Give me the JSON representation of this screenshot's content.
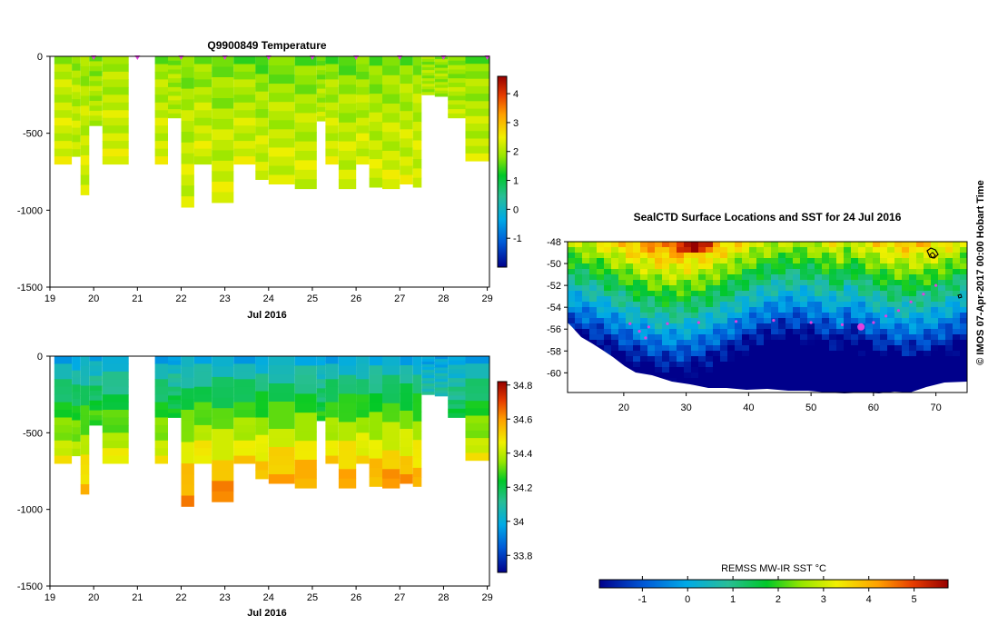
{
  "figure": {
    "credit": "© IMOS 07-Apr-2017 00:00 Hobart Time",
    "colors": {
      "missing": "#ffffff",
      "marker": "#e040e0",
      "axis": "#000000"
    }
  },
  "chart_data": [
    {
      "type": "heatmap",
      "id": "temperature-section",
      "title": "Q9900849  Temperature",
      "xlabel": "Jul 2016",
      "ylabel": "",
      "x_ticks": [
        "19",
        "20",
        "21",
        "22",
        "23",
        "24",
        "25",
        "26",
        "27",
        "28",
        "29"
      ],
      "x_range": [
        19,
        29.05
      ],
      "y_ticks": [
        "0",
        "-500",
        "-1000",
        "-1500"
      ],
      "y_tick_values": [
        0,
        -500,
        -1000,
        -1500
      ],
      "y_range": [
        -1500,
        0
      ],
      "profile_markers": [
        20,
        21,
        22,
        23,
        24,
        25,
        26,
        27,
        28,
        29
      ],
      "colorbar": {
        "ticks": [
          "4",
          "3",
          "2",
          "1",
          "0",
          "-1"
        ],
        "tick_values": [
          4,
          3,
          2,
          1,
          0,
          -1
        ],
        "range": [
          -2,
          4.6
        ]
      },
      "profiles": [
        {
          "start": 19.1,
          "end": 19.5,
          "max_depth": 700,
          "surface": 1.8,
          "deep": 2.3
        },
        {
          "start": 19.5,
          "end": 19.7,
          "max_depth": 650,
          "surface": 1.7,
          "deep": 2.2
        },
        {
          "start": 19.7,
          "end": 19.9,
          "max_depth": 900,
          "surface": 1.6,
          "deep": 2.3
        },
        {
          "start": 19.9,
          "end": 20.2,
          "max_depth": 450,
          "surface": 1.5,
          "deep": 2.1
        },
        {
          "start": 20.2,
          "end": 20.8,
          "max_depth": 700,
          "surface": 1.6,
          "deep": 2.3
        },
        {
          "start": 21.4,
          "end": 21.7,
          "max_depth": 700,
          "surface": 1.5,
          "deep": 2.3
        },
        {
          "start": 21.7,
          "end": 22.0,
          "max_depth": 400,
          "surface": 1.6,
          "deep": 2.1
        },
        {
          "start": 22.0,
          "end": 22.3,
          "max_depth": 980,
          "surface": 1.3,
          "deep": 2.3
        },
        {
          "start": 22.3,
          "end": 22.7,
          "max_depth": 700,
          "surface": 1.4,
          "deep": 2.3
        },
        {
          "start": 22.7,
          "end": 23.2,
          "max_depth": 950,
          "surface": 1.2,
          "deep": 2.3
        },
        {
          "start": 23.2,
          "end": 23.7,
          "max_depth": 700,
          "surface": 1.3,
          "deep": 2.3
        },
        {
          "start": 23.7,
          "end": 24.0,
          "max_depth": 800,
          "surface": 1.1,
          "deep": 2.3
        },
        {
          "start": 24.0,
          "end": 24.6,
          "max_depth": 830,
          "surface": 1.2,
          "deep": 2.3
        },
        {
          "start": 24.6,
          "end": 25.1,
          "max_depth": 860,
          "surface": 1.2,
          "deep": 2.3
        },
        {
          "start": 25.1,
          "end": 25.3,
          "max_depth": 420,
          "surface": 1.3,
          "deep": 2.1
        },
        {
          "start": 25.3,
          "end": 25.6,
          "max_depth": 700,
          "surface": 1.3,
          "deep": 2.3
        },
        {
          "start": 25.6,
          "end": 26.0,
          "max_depth": 860,
          "surface": 1.2,
          "deep": 2.3
        },
        {
          "start": 26.0,
          "end": 26.3,
          "max_depth": 700,
          "surface": 1.3,
          "deep": 2.3
        },
        {
          "start": 26.3,
          "end": 26.6,
          "max_depth": 850,
          "surface": 1.2,
          "deep": 2.3
        },
        {
          "start": 26.6,
          "end": 27.0,
          "max_depth": 860,
          "surface": 1.3,
          "deep": 2.3
        },
        {
          "start": 27.0,
          "end": 27.3,
          "max_depth": 830,
          "surface": 1.4,
          "deep": 2.3
        },
        {
          "start": 27.3,
          "end": 27.5,
          "max_depth": 850,
          "surface": 1.5,
          "deep": 2.3
        },
        {
          "start": 27.5,
          "end": 27.8,
          "max_depth": 250,
          "surface": 1.7,
          "deep": 2.0
        },
        {
          "start": 27.8,
          "end": 28.1,
          "max_depth": 260,
          "surface": 1.6,
          "deep": 2.0
        },
        {
          "start": 28.1,
          "end": 28.5,
          "max_depth": 400,
          "surface": 1.5,
          "deep": 2.1
        },
        {
          "start": 28.5,
          "end": 29.05,
          "max_depth": 680,
          "surface": 1.4,
          "deep": 2.2
        }
      ]
    },
    {
      "type": "heatmap",
      "id": "salinity-section",
      "title": "",
      "xlabel": "Jul 2016",
      "ylabel": "",
      "x_ticks": [
        "19",
        "20",
        "21",
        "22",
        "23",
        "24",
        "25",
        "26",
        "27",
        "28",
        "29"
      ],
      "x_range": [
        19,
        29.05
      ],
      "y_ticks": [
        "0",
        "-500",
        "-1000",
        "-1500"
      ],
      "y_tick_values": [
        0,
        -500,
        -1000,
        -1500
      ],
      "y_range": [
        -1500,
        0
      ],
      "colorbar": {
        "ticks": [
          "34.8",
          "34.6",
          "34.4",
          "34.2",
          "34",
          "33.8"
        ],
        "tick_values": [
          34.8,
          34.6,
          34.4,
          34.2,
          34.0,
          33.8
        ],
        "range": [
          33.7,
          34.82
        ]
      },
      "profiles": [
        {
          "start": 19.1,
          "end": 19.5,
          "max_depth": 700,
          "surface": 33.95,
          "deep": 34.45
        },
        {
          "start": 19.5,
          "end": 19.7,
          "max_depth": 650,
          "surface": 33.95,
          "deep": 34.4
        },
        {
          "start": 19.7,
          "end": 19.9,
          "max_depth": 900,
          "surface": 33.95,
          "deep": 34.55
        },
        {
          "start": 19.9,
          "end": 20.2,
          "max_depth": 450,
          "surface": 33.95,
          "deep": 34.3
        },
        {
          "start": 20.2,
          "end": 20.8,
          "max_depth": 700,
          "surface": 33.95,
          "deep": 34.45
        },
        {
          "start": 21.4,
          "end": 21.7,
          "max_depth": 700,
          "surface": 33.95,
          "deep": 34.45
        },
        {
          "start": 21.7,
          "end": 22.0,
          "max_depth": 400,
          "surface": 33.95,
          "deep": 34.25
        },
        {
          "start": 22.0,
          "end": 22.3,
          "max_depth": 980,
          "surface": 33.95,
          "deep": 34.62
        },
        {
          "start": 22.3,
          "end": 22.7,
          "max_depth": 700,
          "surface": 33.95,
          "deep": 34.5
        },
        {
          "start": 22.7,
          "end": 23.2,
          "max_depth": 950,
          "surface": 33.95,
          "deep": 34.62
        },
        {
          "start": 23.2,
          "end": 23.7,
          "max_depth": 700,
          "surface": 33.95,
          "deep": 34.5
        },
        {
          "start": 23.7,
          "end": 24.0,
          "max_depth": 800,
          "surface": 33.95,
          "deep": 34.55
        },
        {
          "start": 24.0,
          "end": 24.6,
          "max_depth": 830,
          "surface": 33.95,
          "deep": 34.58
        },
        {
          "start": 24.6,
          "end": 25.1,
          "max_depth": 860,
          "surface": 33.95,
          "deep": 34.6
        },
        {
          "start": 25.1,
          "end": 25.3,
          "max_depth": 420,
          "surface": 33.95,
          "deep": 34.25
        },
        {
          "start": 25.3,
          "end": 25.6,
          "max_depth": 700,
          "surface": 33.95,
          "deep": 34.5
        },
        {
          "start": 25.6,
          "end": 26.0,
          "max_depth": 860,
          "surface": 33.95,
          "deep": 34.6
        },
        {
          "start": 26.0,
          "end": 26.3,
          "max_depth": 700,
          "surface": 33.95,
          "deep": 34.5
        },
        {
          "start": 26.3,
          "end": 26.6,
          "max_depth": 850,
          "surface": 33.95,
          "deep": 34.58
        },
        {
          "start": 26.6,
          "end": 27.0,
          "max_depth": 860,
          "surface": 33.95,
          "deep": 34.6
        },
        {
          "start": 27.0,
          "end": 27.3,
          "max_depth": 830,
          "surface": 33.95,
          "deep": 34.58
        },
        {
          "start": 27.3,
          "end": 27.5,
          "max_depth": 850,
          "surface": 33.95,
          "deep": 34.58
        },
        {
          "start": 27.5,
          "end": 27.8,
          "max_depth": 250,
          "surface": 33.95,
          "deep": 34.1
        },
        {
          "start": 27.8,
          "end": 28.1,
          "max_depth": 260,
          "surface": 33.95,
          "deep": 34.1
        },
        {
          "start": 28.1,
          "end": 28.5,
          "max_depth": 400,
          "surface": 33.95,
          "deep": 34.2
        },
        {
          "start": 28.5,
          "end": 29.05,
          "max_depth": 680,
          "surface": 33.95,
          "deep": 34.45
        }
      ]
    },
    {
      "type": "heatmap",
      "id": "sst-map",
      "title": "SealCTD Surface Locations and SST for 24 Jul 2016",
      "xlabel": "",
      "ylabel": "",
      "x_ticks": [
        "20",
        "30",
        "40",
        "50",
        "60",
        "70"
      ],
      "x_tick_values": [
        20,
        30,
        40,
        50,
        60,
        70
      ],
      "x_range": [
        11,
        75
      ],
      "y_ticks": [
        "-48",
        "-50",
        "-52",
        "-54",
        "-56",
        "-58",
        "-60"
      ],
      "y_tick_values": [
        -48,
        -50,
        -52,
        -54,
        -56,
        -58,
        -60
      ],
      "y_range": [
        -61.8,
        -48
      ],
      "colorbar": {
        "label": "REMSS MW-IR SST °C",
        "ticks": [
          "-1",
          "0",
          "1",
          "2",
          "3",
          "4",
          "5"
        ],
        "tick_values": [
          -1,
          0,
          1,
          2,
          3,
          4,
          5
        ],
        "range": [
          -1.95,
          5.75
        ]
      },
      "track_points": [
        {
          "lon": 21.0,
          "lat": -55.5
        },
        {
          "lon": 22.5,
          "lat": -56.2
        },
        {
          "lon": 23.5,
          "lat": -56.8
        },
        {
          "lon": 24.0,
          "lat": -55.8
        },
        {
          "lon": 27.0,
          "lat": -55.5
        },
        {
          "lon": 32.0,
          "lat": -55.4
        },
        {
          "lon": 38.0,
          "lat": -55.3
        },
        {
          "lon": 44.0,
          "lat": -55.2
        },
        {
          "lon": 50.0,
          "lat": -55.4
        },
        {
          "lon": 55.0,
          "lat": -55.6
        },
        {
          "lon": 58.0,
          "lat": -55.8
        },
        {
          "lon": 60.0,
          "lat": -55.4
        },
        {
          "lon": 62.0,
          "lat": -54.8
        },
        {
          "lon": 64.0,
          "lat": -54.3
        },
        {
          "lon": 66.0,
          "lat": -53.5
        },
        {
          "lon": 68.0,
          "lat": -52.8
        },
        {
          "lon": 70.0,
          "lat": -52.0
        }
      ],
      "current_location": {
        "lon": 58.0,
        "lat": -55.8
      }
    }
  ]
}
